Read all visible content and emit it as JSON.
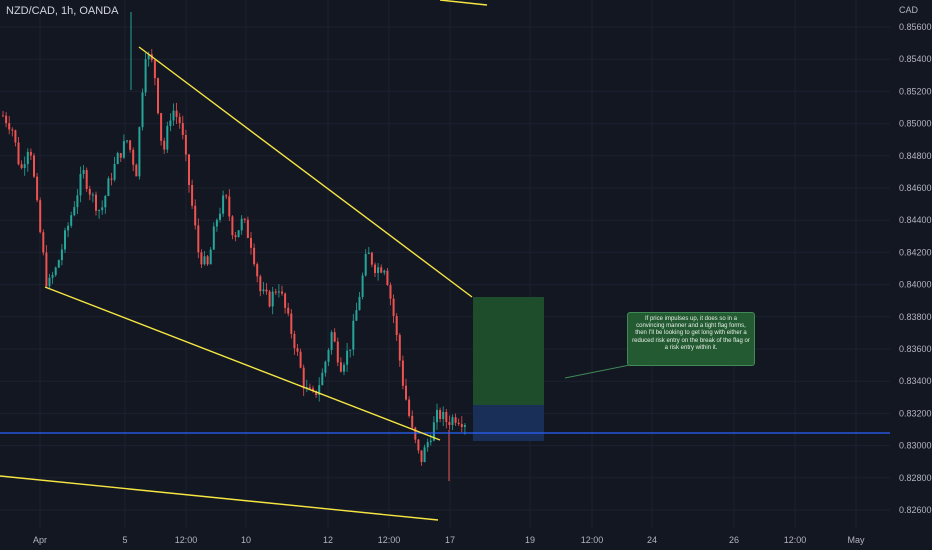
{
  "header": {
    "title": "NZD/CAD, 1h, OANDA",
    "currency": "CAD"
  },
  "annotation": {
    "text": "If price impulses up, it does so in a convincing manner and a tight flag forms, then I'll be looking to get long with either a reduced risk entry on the break of the flag or a risk entry within it."
  },
  "colors": {
    "background": "#131722",
    "bull": "#26a69a",
    "bear": "#ef5350",
    "trendline": "#f5e642",
    "horizontal": "#2962ff",
    "target_zone": "#1e4d2b",
    "risk_zone": "#1a2f57",
    "note_bg": "#245a32"
  },
  "chart_data": {
    "type": "candlestick",
    "title": "NZD/CAD, 1h, OANDA",
    "ylim": [
      0.8253,
      0.8568
    ],
    "y_ticks": [
      "0.85600",
      "0.85400",
      "0.85200",
      "0.85000",
      "0.84800",
      "0.84600",
      "0.84400",
      "0.84200",
      "0.84000",
      "0.83800",
      "0.83600",
      "0.83400",
      "0.83200",
      "0.83000",
      "0.82800",
      "0.82600"
    ],
    "x_ticks": [
      "Apr",
      "5",
      "12:00",
      "10",
      "12",
      "12:00",
      "17",
      "19",
      "12:00",
      "24",
      "26",
      "12:00",
      "May"
    ],
    "price_path": [
      0.8505,
      0.8498,
      0.847,
      0.849,
      0.844,
      0.8398,
      0.841,
      0.843,
      0.845,
      0.847,
      0.8455,
      0.8445,
      0.8465,
      0.848,
      0.849,
      0.847,
      0.8545,
      0.8535,
      0.848,
      0.851,
      0.85,
      0.846,
      0.842,
      0.841,
      0.844,
      0.8455,
      0.843,
      0.844,
      0.8425,
      0.8395,
      0.839,
      0.84,
      0.838,
      0.836,
      0.8335,
      0.833,
      0.8345,
      0.837,
      0.835,
      0.836,
      0.839,
      0.842,
      0.841,
      0.8412,
      0.838,
      0.834,
      0.831,
      0.829,
      0.8305,
      0.832,
      0.8315,
      0.8318,
      0.8315
    ],
    "horizontal_line": 0.8307,
    "target_zone": [
      0.8324,
      0.8392
    ],
    "risk_zone": [
      0.8302,
      0.8324
    ]
  }
}
